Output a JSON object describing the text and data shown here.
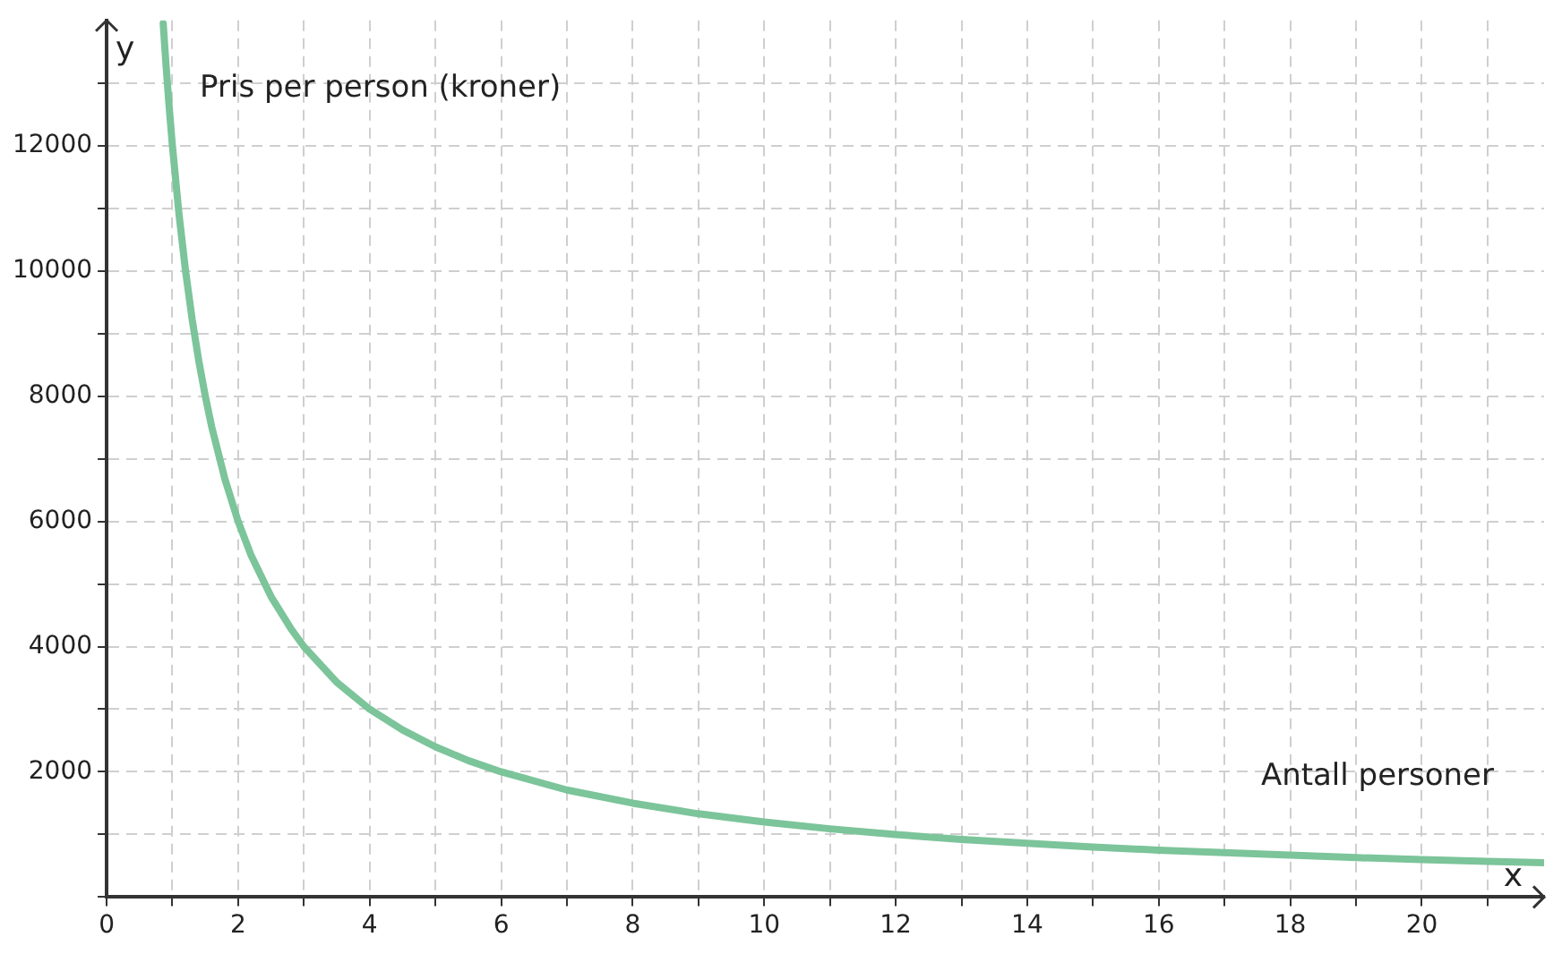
{
  "chart_data": {
    "type": "line",
    "xlabel": "x",
    "ylabel": "y",
    "annotations": [
      "Pris per person (kroner)",
      "Antall personer"
    ],
    "x": [
      0.86,
      0.9,
      0.95,
      1,
      1.1,
      1.2,
      1.3,
      1.4,
      1.5,
      1.6,
      1.8,
      2,
      2.2,
      2.5,
      2.8,
      3,
      3.5,
      4,
      4.5,
      5,
      5.5,
      6,
      7,
      8,
      9,
      10,
      11,
      12,
      13,
      14,
      15,
      16,
      17,
      18,
      19,
      20,
      21,
      21.86
    ],
    "series": [
      {
        "color": "#7cc49a",
        "values": [
          13950,
          13330,
          12630,
          12000,
          10910,
          10000,
          9230,
          8570,
          8000,
          7500,
          6670,
          6000,
          5450,
          4800,
          4290,
          4000,
          3430,
          3000,
          2670,
          2400,
          2180,
          2000,
          1710,
          1500,
          1330,
          1200,
          1090,
          1000,
          920,
          860,
          800,
          750,
          710,
          670,
          630,
          600,
          570,
          550
        ]
      }
    ],
    "xlim": [
      0,
      21.86
    ],
    "ylim": [
      0,
      14000
    ],
    "xticks": [
      0,
      {
        "value": 1,
        "label": null
      },
      2,
      {
        "value": 3,
        "label": null
      },
      4,
      {
        "value": 5,
        "label": null
      },
      6,
      {
        "value": 7,
        "label": null
      },
      8,
      {
        "value": 9,
        "label": null
      },
      10,
      {
        "value": 11,
        "label": null
      },
      12,
      {
        "value": 13,
        "label": null
      },
      14,
      {
        "value": 15,
        "label": null
      },
      16,
      {
        "value": 17,
        "label": null
      },
      18,
      {
        "value": 19,
        "label": null
      },
      20,
      {
        "value": 21,
        "label": null
      }
    ],
    "yticks": [
      {
        "value": 0,
        "label": null
      },
      {
        "value": 1000,
        "label": null
      },
      2000,
      {
        "value": 3000,
        "label": null
      },
      4000,
      {
        "value": 5000,
        "label": null
      },
      6000,
      {
        "value": 7000,
        "label": null
      },
      8000,
      {
        "value": 9000,
        "label": null
      },
      10000,
      {
        "value": 11000,
        "label": null
      },
      12000,
      {
        "value": 13000,
        "label": null
      }
    ],
    "grid": true,
    "legend": false,
    "marker": "none",
    "line_style": "solid"
  }
}
